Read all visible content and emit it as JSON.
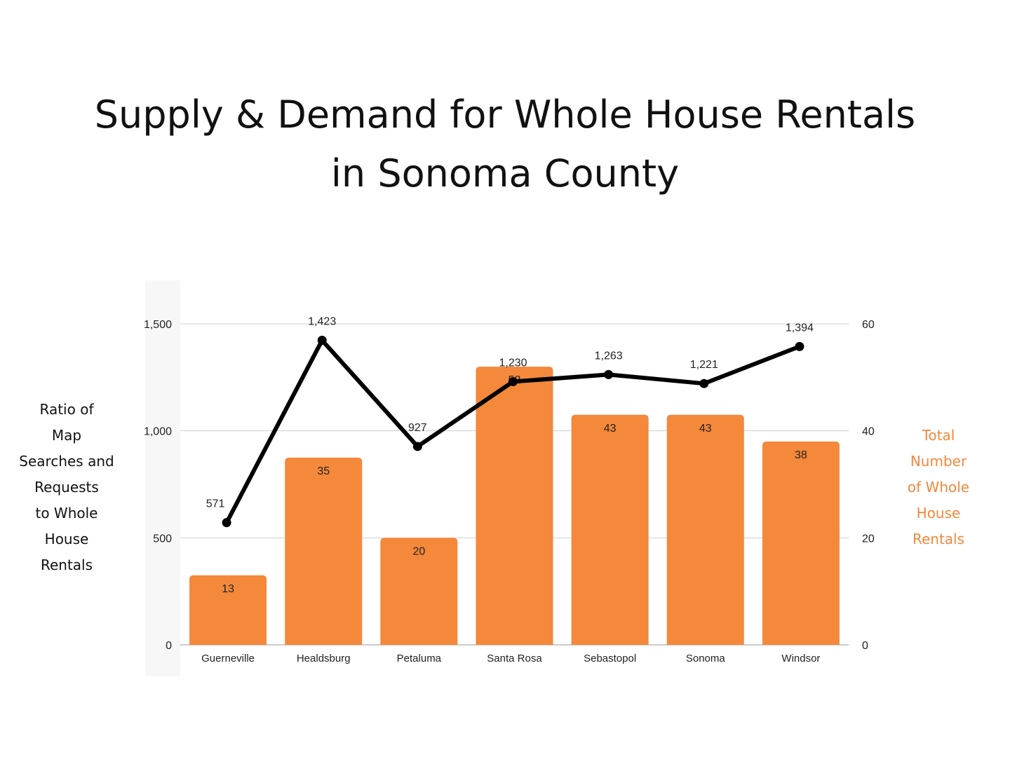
{
  "title_lines": [
    "Supply & Demand for Whole House Rentals",
    "in Sonoma County"
  ],
  "chart_data": {
    "type": "bar+line",
    "title": "Supply & Demand for Whole House Rentals in Sonoma County",
    "categories": [
      "Guerneville",
      "Healdsburg",
      "Petaluma",
      "Santa Rosa",
      "Sebastopol",
      "Sonoma",
      "Windsor"
    ],
    "ylabel_lines": [
      "Ratio of",
      "Map",
      "Searches and",
      "Requests",
      "to Whole",
      "House",
      "Rentals"
    ],
    "y2label_lines": [
      "Total",
      "Number",
      "of Whole",
      "House",
      "Rentals"
    ],
    "y_ticks": [
      "0",
      "500",
      "1,000",
      "1,500"
    ],
    "y_tick_values": [
      0,
      500,
      1000,
      1500
    ],
    "y2_ticks": [
      "0",
      "20",
      "40",
      "60"
    ],
    "y2_tick_values": [
      0,
      20,
      40,
      60
    ],
    "ylim": [
      0,
      1500
    ],
    "y2lim": [
      0,
      60
    ],
    "grid": true,
    "series": [
      {
        "kind": "bar",
        "axis": "right",
        "values": [
          13,
          35,
          20,
          52,
          43,
          43,
          38
        ],
        "labels": [
          "13",
          "35",
          "20",
          "52",
          "43",
          "43",
          "38"
        ],
        "color": "#f4883b"
      },
      {
        "kind": "line",
        "axis": "left",
        "values": [
          571,
          1423,
          927,
          1230,
          1263,
          1221,
          1394
        ],
        "labels": [
          "571",
          "1,423",
          "927",
          "1,230",
          "1,263",
          "1,221",
          "1,394"
        ],
        "color": "#000000"
      }
    ],
    "colors": {
      "bar": "#f4883b",
      "line": "#000000",
      "right_axis_label": "#f4883b",
      "grid": "#cfcfcf"
    }
  }
}
